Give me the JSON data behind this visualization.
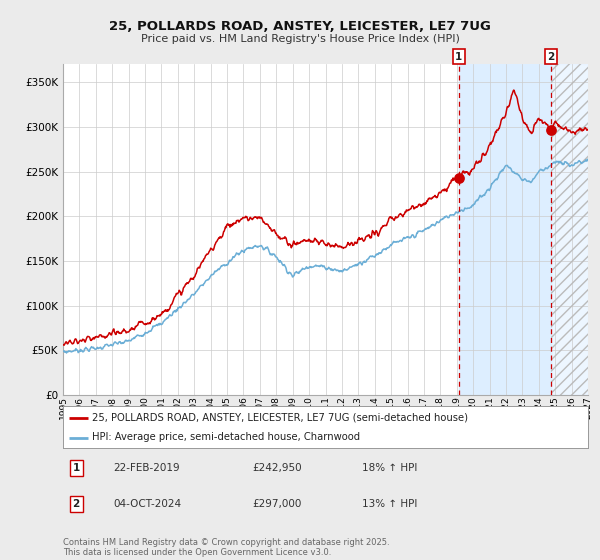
{
  "title1": "25, POLLARDS ROAD, ANSTEY, LEICESTER, LE7 7UG",
  "title2": "Price paid vs. HM Land Registry's House Price Index (HPI)",
  "legend1": "25, POLLARDS ROAD, ANSTEY, LEICESTER, LE7 7UG (semi-detached house)",
  "legend2": "HPI: Average price, semi-detached house, Charnwood",
  "annotation1_date": "22-FEB-2019",
  "annotation1_price": "£242,950",
  "annotation1_hpi": "18% ↑ HPI",
  "annotation1_year": 2019.13,
  "annotation1_value": 242950,
  "annotation2_date": "04-OCT-2024",
  "annotation2_price": "£297,000",
  "annotation2_hpi": "13% ↑ HPI",
  "annotation2_year": 2024.75,
  "annotation2_value": 297000,
  "hpi_color": "#6baed6",
  "price_color": "#cc0000",
  "background_color": "#ebebeb",
  "plot_bg_color": "#ffffff",
  "shade_color": "#ddeeff",
  "hatch_color": "#cccccc",
  "copyright": "Contains HM Land Registry data © Crown copyright and database right 2025.\nThis data is licensed under the Open Government Licence v3.0.",
  "ylim": [
    0,
    370000
  ],
  "xlim_start": 1995,
  "xlim_end": 2027,
  "hpi_ctrl": [
    [
      1995,
      48000
    ],
    [
      1997,
      52000
    ],
    [
      1999,
      60000
    ],
    [
      2001,
      80000
    ],
    [
      2003,
      113000
    ],
    [
      2004,
      133000
    ],
    [
      2005,
      148000
    ],
    [
      2006,
      162000
    ],
    [
      2007,
      168000
    ],
    [
      2008,
      155000
    ],
    [
      2009,
      133000
    ],
    [
      2010,
      145000
    ],
    [
      2011,
      143000
    ],
    [
      2012,
      138000
    ],
    [
      2013,
      147000
    ],
    [
      2014,
      156000
    ],
    [
      2015,
      168000
    ],
    [
      2016,
      175000
    ],
    [
      2017,
      184000
    ],
    [
      2018,
      195000
    ],
    [
      2019,
      205000
    ],
    [
      2020,
      212000
    ],
    [
      2021,
      232000
    ],
    [
      2022,
      257000
    ],
    [
      2023,
      242000
    ],
    [
      2023.5,
      238000
    ],
    [
      2024,
      250000
    ],
    [
      2025,
      260000
    ],
    [
      2026,
      258000
    ],
    [
      2027,
      263000
    ]
  ],
  "price_ctrl": [
    [
      1995,
      57000
    ],
    [
      1997,
      63000
    ],
    [
      1999,
      72000
    ],
    [
      2001,
      90000
    ],
    [
      2003,
      133000
    ],
    [
      2004,
      163000
    ],
    [
      2005,
      188000
    ],
    [
      2006,
      198000
    ],
    [
      2007,
      197000
    ],
    [
      2008,
      180000
    ],
    [
      2009,
      168000
    ],
    [
      2010,
      174000
    ],
    [
      2011,
      169000
    ],
    [
      2012,
      167000
    ],
    [
      2013,
      171000
    ],
    [
      2014,
      180000
    ],
    [
      2015,
      195000
    ],
    [
      2016,
      206000
    ],
    [
      2017,
      216000
    ],
    [
      2018,
      226000
    ],
    [
      2019,
      242950
    ],
    [
      2019.5,
      248000
    ],
    [
      2020,
      252000
    ],
    [
      2021,
      278000
    ],
    [
      2022,
      318000
    ],
    [
      2022.5,
      342000
    ],
    [
      2023,
      308000
    ],
    [
      2023.5,
      293000
    ],
    [
      2024,
      312000
    ],
    [
      2024.75,
      297000
    ],
    [
      2025,
      306000
    ],
    [
      2026,
      294000
    ],
    [
      2027,
      299000
    ]
  ]
}
